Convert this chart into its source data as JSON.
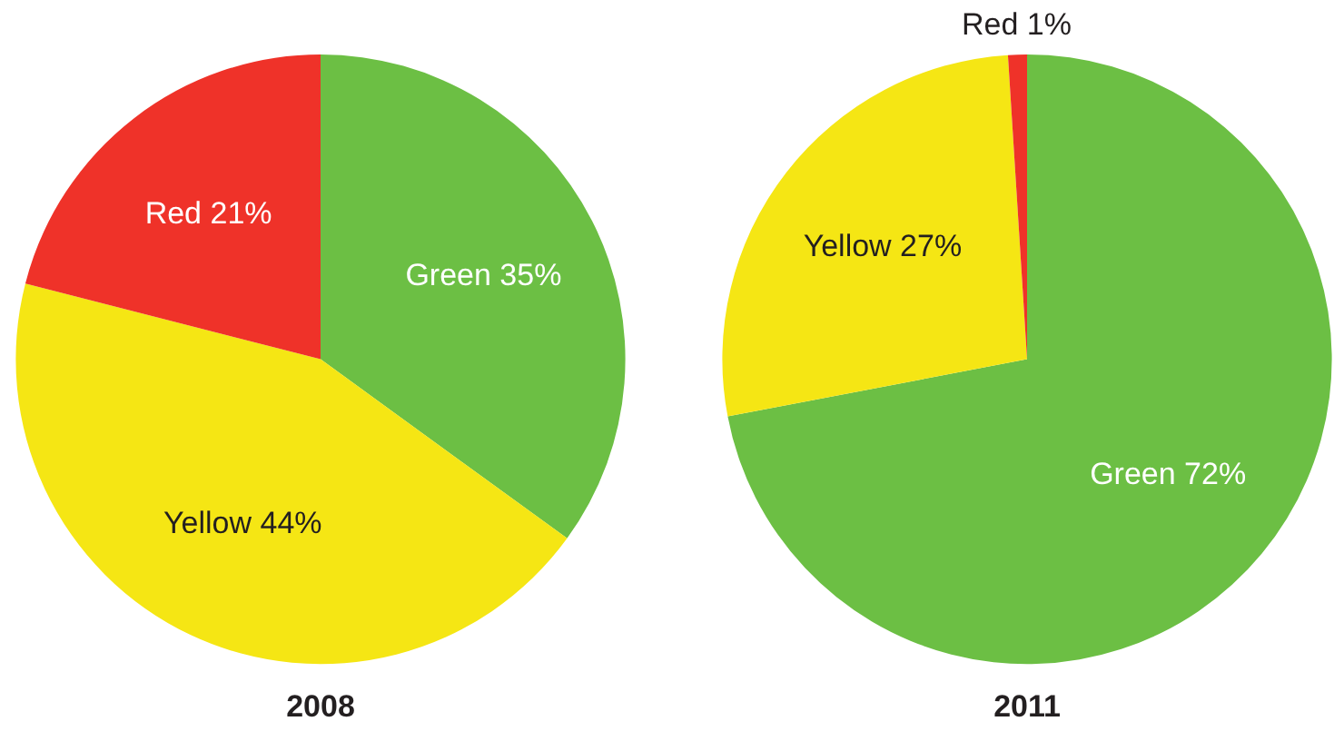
{
  "chart_data": [
    {
      "type": "pie",
      "title": "2008",
      "categories": [
        "Green",
        "Yellow",
        "Red"
      ],
      "values": [
        35,
        44,
        21
      ],
      "colors": [
        "#6cbf44",
        "#f5e614",
        "#ef3229"
      ],
      "value_labels": [
        "35%",
        "44%",
        "21%"
      ],
      "legend": false
    },
    {
      "type": "pie",
      "title": "2011",
      "categories": [
        "Green",
        "Yellow",
        "Red"
      ],
      "values": [
        72,
        27,
        1
      ],
      "colors": [
        "#6cbf44",
        "#f5e614",
        "#ef3229"
      ],
      "value_labels": [
        "72%",
        "27%",
        "1%"
      ],
      "legend": false
    }
  ]
}
